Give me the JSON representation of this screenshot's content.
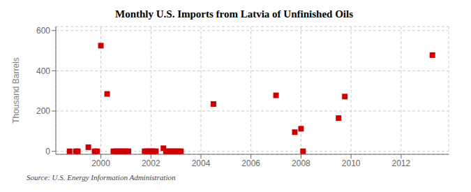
{
  "chart_data": {
    "type": "scatter",
    "title": "Monthly U.S. Imports from Latvia of Unfinished Oils",
    "y_label": "Thousand Barrels",
    "annotations": [
      "Source: U.S. Energy Information Administration"
    ],
    "x": [
      1998.75,
      1999.0,
      1999.08,
      1999.5,
      1999.75,
      1999.85,
      2000.0,
      2000.25,
      2000.5,
      2000.6,
      2000.7,
      2000.8,
      2000.9,
      2001.0,
      2001.1,
      2001.75,
      2001.85,
      2001.95,
      2002.0,
      2002.1,
      2002.2,
      2002.5,
      2002.6,
      2002.7,
      2002.8,
      2002.9,
      2003.0,
      2003.1,
      2003.2,
      2004.5,
      2007.0,
      2007.75,
      2008.0,
      2008.08,
      2009.5,
      2009.75,
      2013.25
    ],
    "values": [
      0,
      0,
      0,
      20,
      0,
      0,
      525,
      285,
      0,
      0,
      0,
      0,
      0,
      0,
      0,
      0,
      0,
      0,
      0,
      0,
      0,
      15,
      0,
      0,
      0,
      0,
      0,
      0,
      0,
      235,
      278,
      95,
      112,
      0,
      165,
      272,
      478
    ],
    "color": "#cc0000",
    "marker": "square",
    "xlim": [
      1998.2,
      2013.9
    ],
    "ylim": [
      -15,
      620
    ],
    "xticks": [
      2000,
      2002,
      2004,
      2006,
      2008,
      2010,
      2012
    ],
    "yticks": [
      0,
      200,
      400,
      600
    ],
    "grid": true
  }
}
